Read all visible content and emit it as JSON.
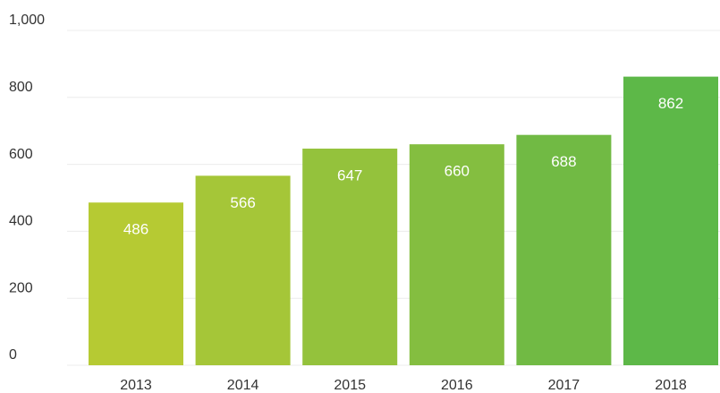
{
  "chart_data": {
    "type": "bar",
    "categories": [
      "2013",
      "2014",
      "2015",
      "2016",
      "2017",
      "2018"
    ],
    "values": [
      486,
      566,
      647,
      660,
      688,
      862
    ],
    "colors": [
      "#b6ca33",
      "#a5c638",
      "#94c23c",
      "#84be40",
      "#71ba44",
      "#5db848"
    ],
    "ylim": [
      0,
      1000
    ],
    "yticks": [
      0,
      200,
      400,
      600,
      800,
      {
        "value": 1000,
        "label": "1,000"
      }
    ],
    "grid": true
  }
}
